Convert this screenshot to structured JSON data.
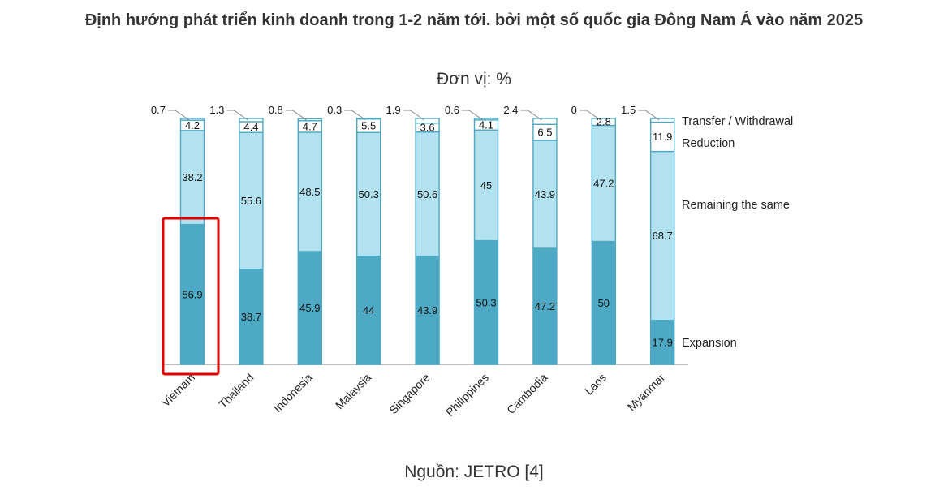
{
  "page": {
    "title": "Định hướng phát triển kinh doanh trong 1-2 năm tới. bởi một số quốc gia Đông Nam Á vào năm 2025",
    "unit": "Đơn vị: %",
    "source": "Nguồn: JETRO [4]"
  },
  "colors": {
    "expansion": "#4eaac4",
    "remaining": "#b2e2ef",
    "reduction": "#ffffff",
    "transfer": "#ffffff",
    "stroke": "#4eaac4",
    "highlight": "#e00000"
  },
  "chart_data": {
    "type": "bar",
    "stacked": true,
    "orientation": "vertical",
    "categories": [
      "Vietnam",
      "Thailand",
      "Indonesia",
      "Malaysia",
      "Singapore",
      "Philippines",
      "Cambodia",
      "Laos",
      "Myanmar"
    ],
    "series": [
      {
        "name": "Expansion",
        "values": [
          56.9,
          38.7,
          45.9,
          44,
          43.9,
          50.3,
          47.2,
          50,
          17.9
        ]
      },
      {
        "name": "Remaining the same",
        "values": [
          38.2,
          55.6,
          48.5,
          50.3,
          50.6,
          45,
          43.9,
          47.2,
          68.7
        ]
      },
      {
        "name": "Reduction",
        "values": [
          4.2,
          4.4,
          4.7,
          5.5,
          3.6,
          4.1,
          6.5,
          2.8,
          11.9
        ]
      },
      {
        "name": "Transfer / Withdrawal",
        "values": [
          0.7,
          1.3,
          0.8,
          0.3,
          1.9,
          0.6,
          2.4,
          0,
          1.5
        ]
      }
    ],
    "ylim": [
      0,
      100
    ],
    "legend_position": "right, labels beside last bar",
    "highlighted_category": "Vietnam"
  }
}
